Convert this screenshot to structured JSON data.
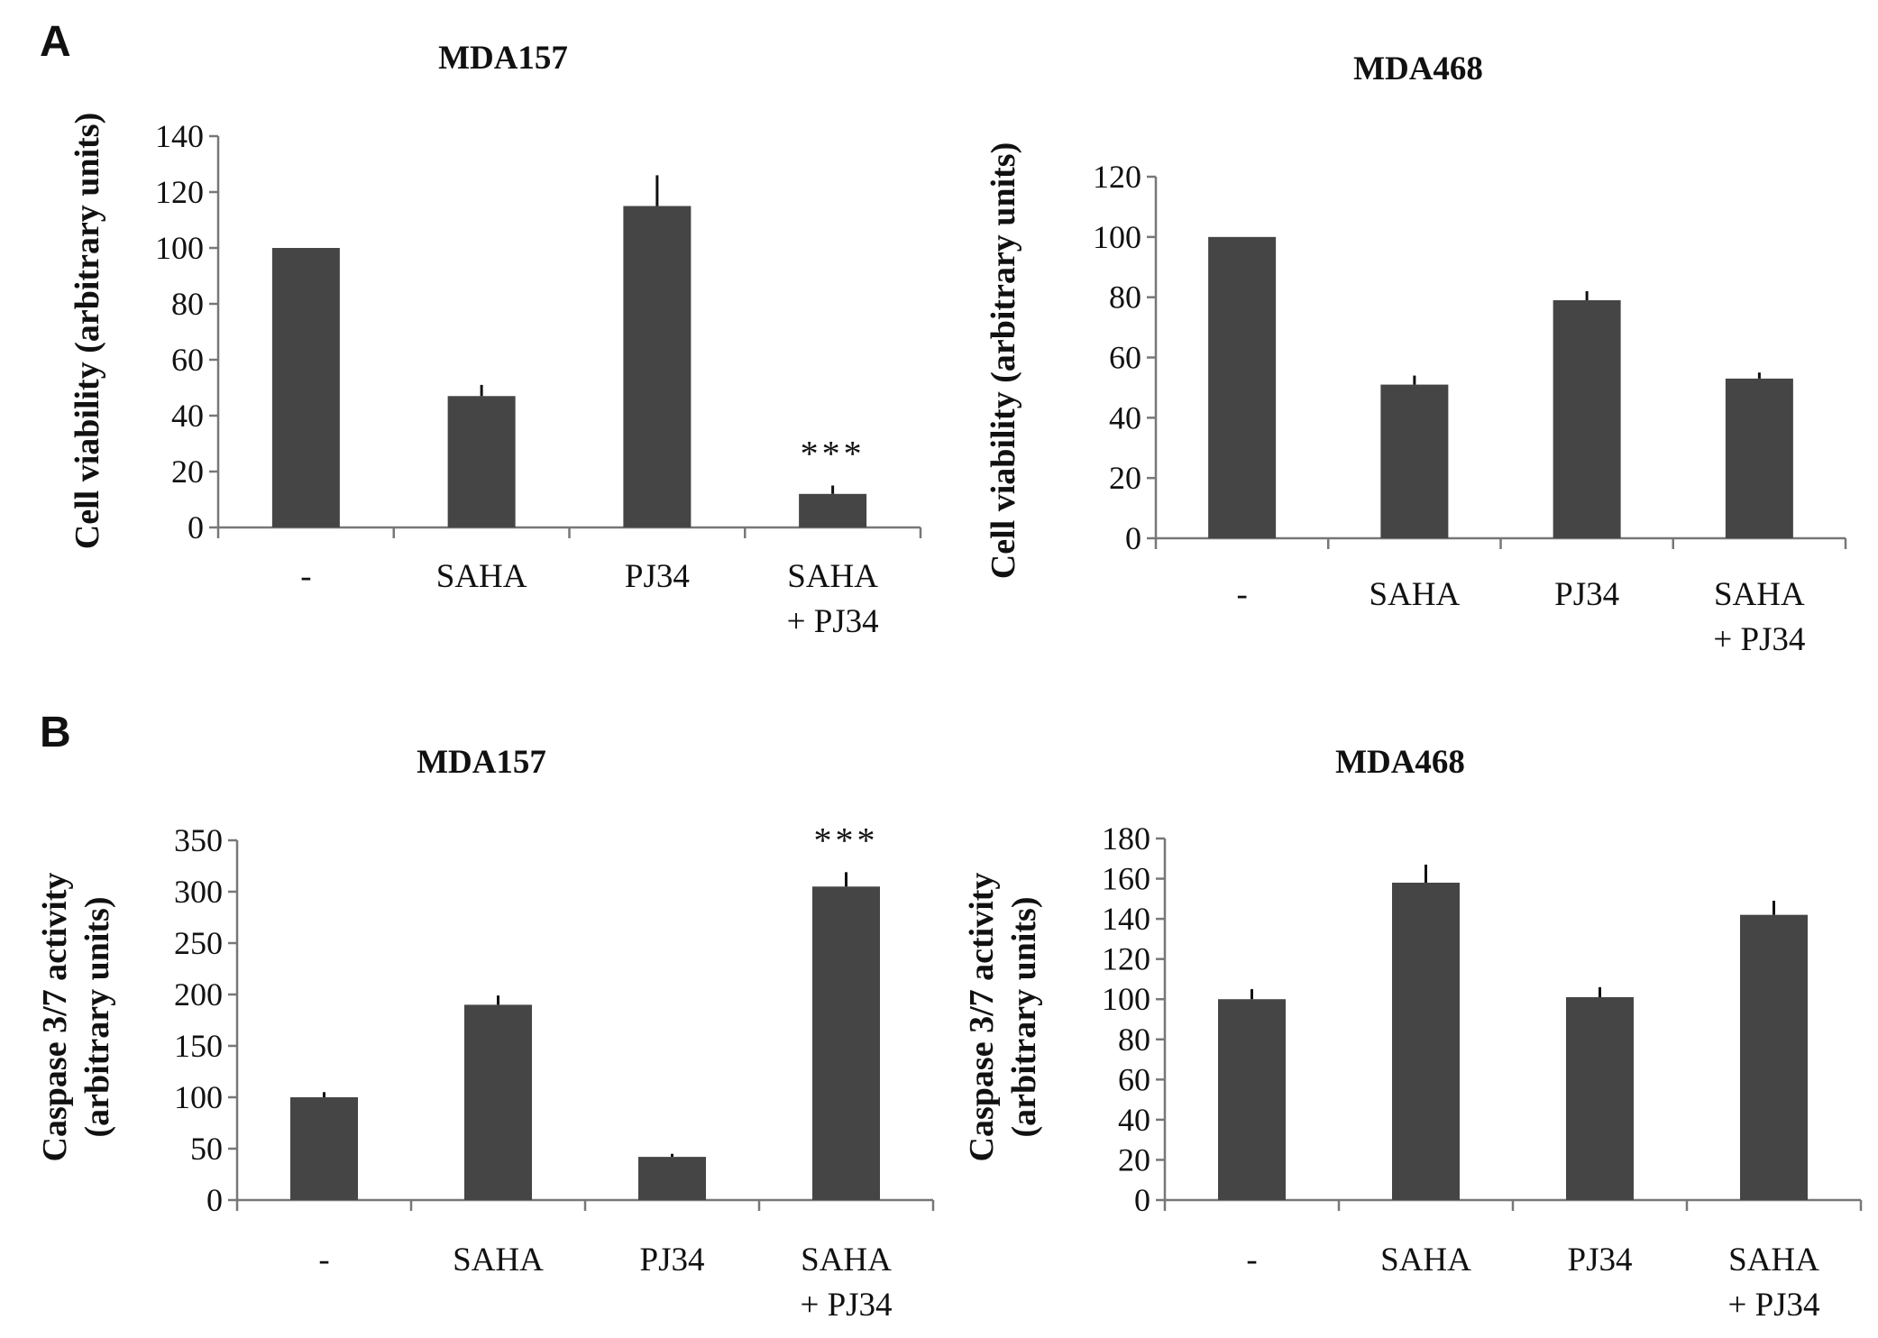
{
  "panel_labels": [
    "A",
    "B"
  ],
  "chart_data": [
    {
      "panel": "A",
      "type": "bar",
      "title": "MDA157",
      "ylabel": [
        "Cell viability (arbitrary units)"
      ],
      "categories": [
        [
          "-"
        ],
        [
          "SAHA"
        ],
        [
          "PJ34"
        ],
        [
          "SAHA",
          "+ PJ34"
        ]
      ],
      "values": [
        100,
        47,
        115,
        12
      ],
      "errors": [
        0,
        4,
        11,
        3
      ],
      "annotations": [
        "",
        "",
        "",
        "***"
      ],
      "ylim": [
        0,
        140
      ],
      "yticks": [
        0,
        20,
        40,
        60,
        80,
        100,
        120,
        140
      ],
      "bar_color": "#454545",
      "grid": false
    },
    {
      "panel": "A",
      "type": "bar",
      "title": "MDA468",
      "ylabel": [
        "Cell viability (arbitrary units)"
      ],
      "categories": [
        [
          "-"
        ],
        [
          "SAHA"
        ],
        [
          "PJ34"
        ],
        [
          "SAHA",
          "+ PJ34"
        ]
      ],
      "values": [
        100,
        51,
        79,
        53
      ],
      "errors": [
        0,
        3,
        3,
        2
      ],
      "annotations": [
        "",
        "",
        "",
        ""
      ],
      "ylim": [
        0,
        120
      ],
      "yticks": [
        0,
        20,
        40,
        60,
        80,
        100,
        120
      ],
      "bar_color": "#454545",
      "grid": false
    },
    {
      "panel": "B",
      "type": "bar",
      "title": "MDA157",
      "ylabel": [
        "Caspase 3/7 activity",
        "(arbitrary units)"
      ],
      "categories": [
        [
          "-"
        ],
        [
          "SAHA"
        ],
        [
          "PJ34"
        ],
        [
          "SAHA",
          "+ PJ34"
        ]
      ],
      "values": [
        100,
        190,
        42,
        305
      ],
      "errors": [
        5,
        9,
        3,
        14
      ],
      "annotations": [
        "",
        "",
        "",
        "***"
      ],
      "ylim": [
        0,
        350
      ],
      "yticks": [
        0,
        50,
        100,
        150,
        200,
        250,
        300,
        350
      ],
      "bar_color": "#454545",
      "grid": false
    },
    {
      "panel": "B",
      "type": "bar",
      "title": "MDA468",
      "ylabel": [
        "Caspase 3/7 activity",
        "(arbitrary units)"
      ],
      "categories": [
        [
          "-"
        ],
        [
          "SAHA"
        ],
        [
          "PJ34"
        ],
        [
          "SAHA",
          "+ PJ34"
        ]
      ],
      "values": [
        100,
        158,
        101,
        142
      ],
      "errors": [
        5,
        9,
        5,
        7
      ],
      "annotations": [
        "",
        "",
        "",
        ""
      ],
      "ylim": [
        0,
        180
      ],
      "yticks": [
        0,
        20,
        40,
        60,
        80,
        100,
        120,
        140,
        160,
        180
      ],
      "bar_color": "#454545",
      "grid": false
    }
  ]
}
